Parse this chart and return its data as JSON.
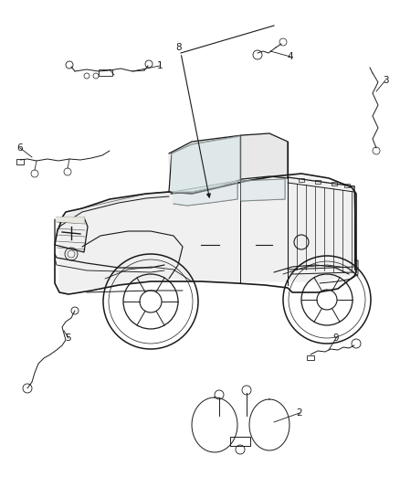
{
  "background_color": "#ffffff",
  "line_color": "#1a1a1a",
  "figure_width": 4.38,
  "figure_height": 5.33,
  "dpi": 100,
  "callout_fontsize": 7.5,
  "leader_lw": 0.6,
  "wire_lw": 0.7,
  "truck_lw": 0.9
}
